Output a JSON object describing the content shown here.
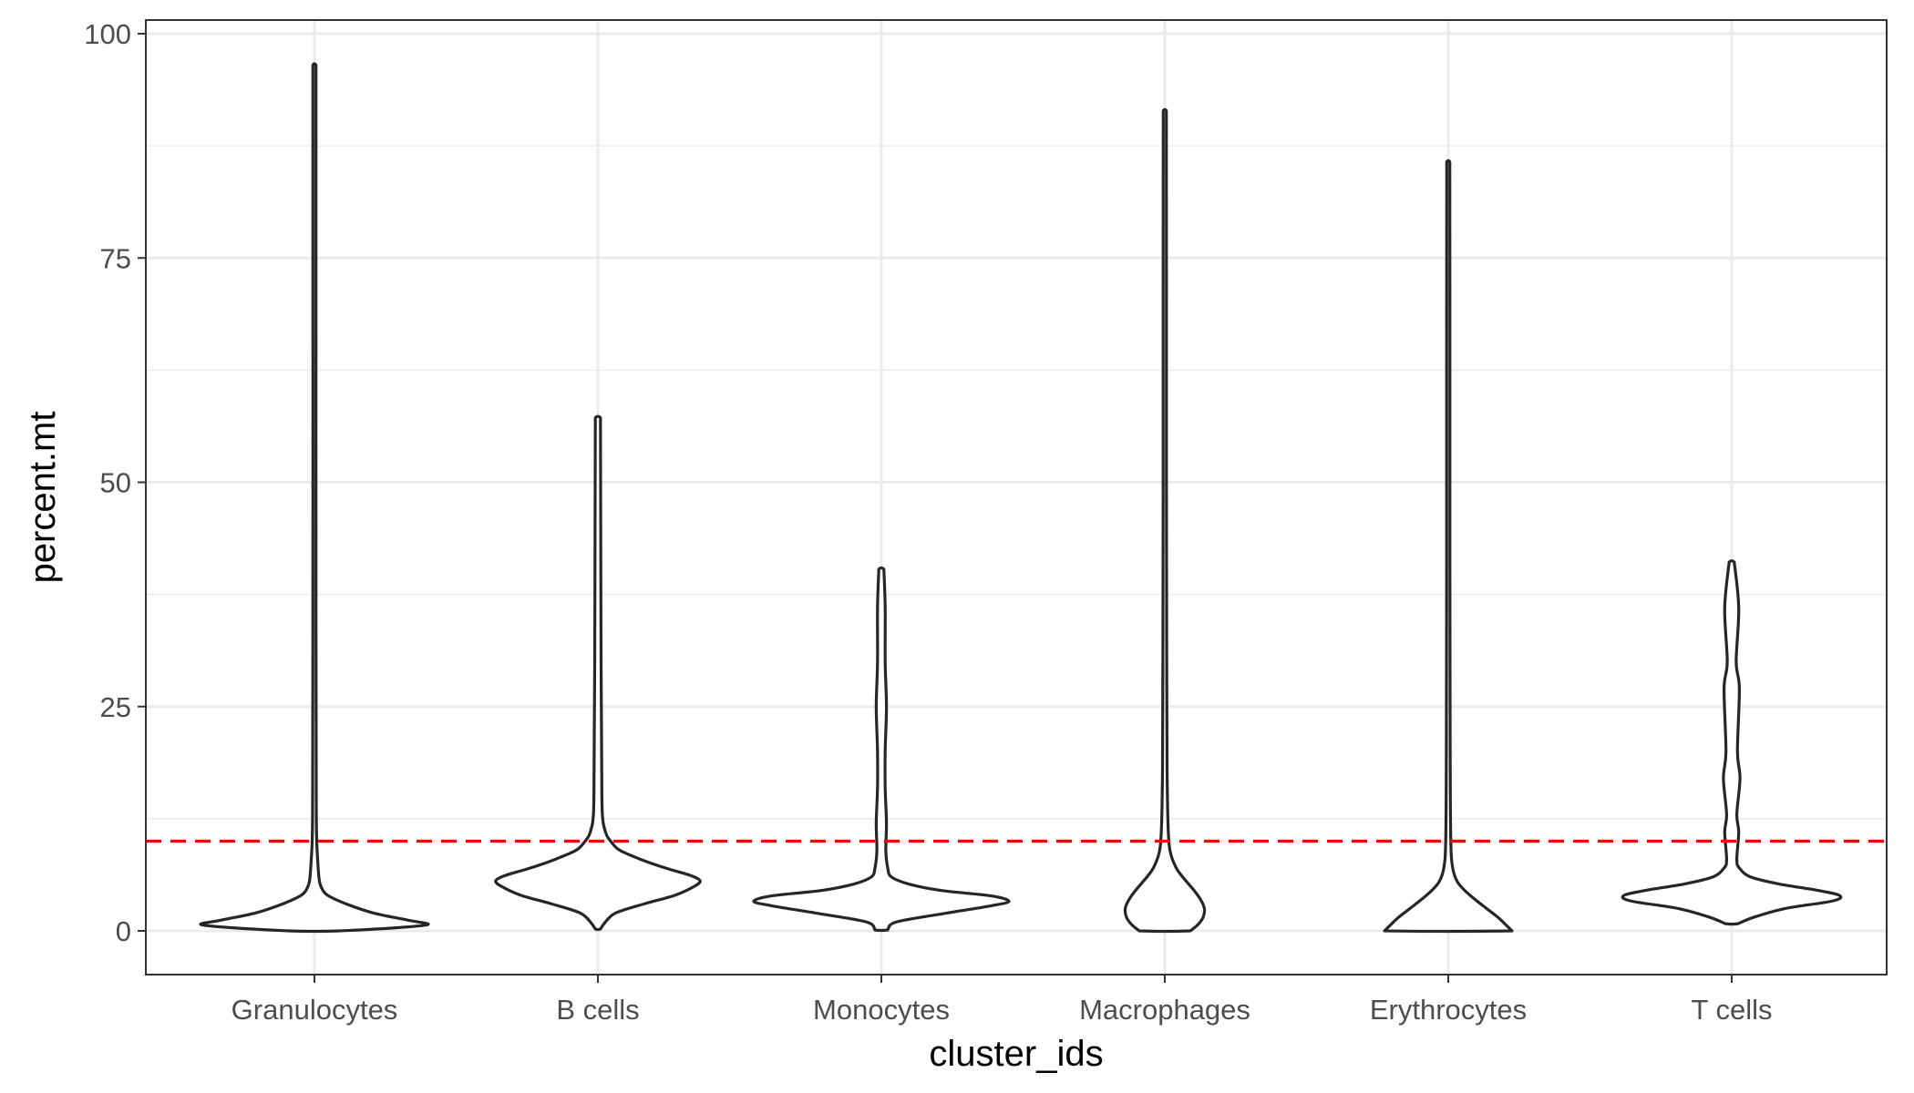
{
  "chart_data": {
    "type": "violin",
    "title": "",
    "xlabel": "cluster_ids",
    "ylabel": "percent.mt",
    "ylim": [
      -4.5,
      104
    ],
    "y_ticks": [
      0,
      25,
      50,
      75,
      100
    ],
    "y_tick_labels": [
      "0",
      "25",
      "50",
      "75",
      "100"
    ],
    "grid": true,
    "legend": "none",
    "categories": [
      "Granulocytes",
      "B cells",
      "Monocytes",
      "Macrophages",
      "Erythrocytes",
      "T cells"
    ],
    "series": [
      {
        "category": "Granulocytes",
        "max": 96.5,
        "profile": [
          [
            0,
            0.2
          ],
          [
            0.3,
            0.6
          ],
          [
            0.7,
            0.89
          ],
          [
            1.2,
            0.73
          ],
          [
            2.0,
            0.46
          ],
          [
            3.0,
            0.25
          ],
          [
            4.0,
            0.1
          ],
          [
            5.0,
            0.05
          ],
          [
            6.0,
            0.035
          ],
          [
            8.0,
            0.025
          ],
          [
            10.0,
            0.018
          ],
          [
            15.0,
            0.014
          ],
          [
            40.0,
            0.012
          ],
          [
            70.0,
            0.012
          ],
          [
            96.5,
            0.012
          ]
        ]
      },
      {
        "category": "B cells",
        "min": 0.2,
        "max": 57.2,
        "profile": [
          [
            0.2,
            0.02
          ],
          [
            1.0,
            0.06
          ],
          [
            2.0,
            0.14
          ],
          [
            3.0,
            0.36
          ],
          [
            4.0,
            0.61
          ],
          [
            5.0,
            0.76
          ],
          [
            5.6,
            0.8
          ],
          [
            6.2,
            0.72
          ],
          [
            7.0,
            0.53
          ],
          [
            8.0,
            0.33
          ],
          [
            9.0,
            0.17
          ],
          [
            10.0,
            0.1
          ],
          [
            11.0,
            0.06
          ],
          [
            13.0,
            0.035
          ],
          [
            18.0,
            0.03
          ],
          [
            30.0,
            0.025
          ],
          [
            45.0,
            0.022
          ],
          [
            57.2,
            0.02
          ]
        ]
      },
      {
        "category": "Monocytes",
        "min": 0.1,
        "max": 40.3,
        "profile": [
          [
            0.1,
            0.05
          ],
          [
            1.0,
            0.12
          ],
          [
            2.0,
            0.52
          ],
          [
            2.8,
            0.86
          ],
          [
            3.3,
            1.0
          ],
          [
            3.9,
            0.86
          ],
          [
            4.5,
            0.47
          ],
          [
            5.2,
            0.22
          ],
          [
            6.0,
            0.08
          ],
          [
            7.0,
            0.05
          ],
          [
            9.0,
            0.035
          ],
          [
            12.0,
            0.04
          ],
          [
            16.0,
            0.03
          ],
          [
            20.0,
            0.03
          ],
          [
            25.0,
            0.04
          ],
          [
            30.0,
            0.03
          ],
          [
            36.0,
            0.03
          ],
          [
            40.3,
            0.02
          ]
        ]
      },
      {
        "category": "Macrophages",
        "min": 0,
        "max": 91.4,
        "profile": [
          [
            0,
            0.2
          ],
          [
            0.7,
            0.26
          ],
          [
            1.5,
            0.3
          ],
          [
            2.5,
            0.31
          ],
          [
            3.5,
            0.28
          ],
          [
            4.5,
            0.23
          ],
          [
            5.5,
            0.17
          ],
          [
            7.0,
            0.09
          ],
          [
            9.0,
            0.04
          ],
          [
            12.0,
            0.025
          ],
          [
            18.0,
            0.018
          ],
          [
            30.0,
            0.015
          ],
          [
            50.0,
            0.013
          ],
          [
            70.0,
            0.013
          ],
          [
            91.4,
            0.012
          ]
        ]
      },
      {
        "category": "Erythrocytes",
        "min": 0,
        "max": 85.7,
        "profile": [
          [
            0,
            0.5
          ],
          [
            0.7,
            0.45
          ],
          [
            1.5,
            0.39
          ],
          [
            2.5,
            0.3
          ],
          [
            3.5,
            0.21
          ],
          [
            4.5,
            0.13
          ],
          [
            5.5,
            0.07
          ],
          [
            7.0,
            0.035
          ],
          [
            10.0,
            0.02
          ],
          [
            20.0,
            0.015
          ],
          [
            40.0,
            0.013
          ],
          [
            60.0,
            0.013
          ],
          [
            85.7,
            0.012
          ]
        ]
      },
      {
        "category": "T cells",
        "min": 0.8,
        "max": 41.1,
        "profile": [
          [
            0.8,
            0.05
          ],
          [
            1.5,
            0.17
          ],
          [
            2.5,
            0.42
          ],
          [
            3.3,
            0.78
          ],
          [
            3.9,
            0.85
          ],
          [
            4.5,
            0.68
          ],
          [
            5.2,
            0.38
          ],
          [
            6.0,
            0.15
          ],
          [
            7.0,
            0.06
          ],
          [
            8.0,
            0.04
          ],
          [
            11.0,
            0.055
          ],
          [
            13.0,
            0.04
          ],
          [
            17.0,
            0.065
          ],
          [
            20.0,
            0.045
          ],
          [
            27.0,
            0.06
          ],
          [
            30.0,
            0.035
          ],
          [
            36.0,
            0.055
          ],
          [
            41.1,
            0.02
          ]
        ]
      }
    ],
    "reference_line": {
      "y": 10,
      "color": "#ff0000",
      "style": "dashed"
    }
  },
  "colors": {
    "violin_stroke": "#262626",
    "grid": "#ebebeb",
    "panel_border": "#333333",
    "reference_line": "#ff0000"
  }
}
